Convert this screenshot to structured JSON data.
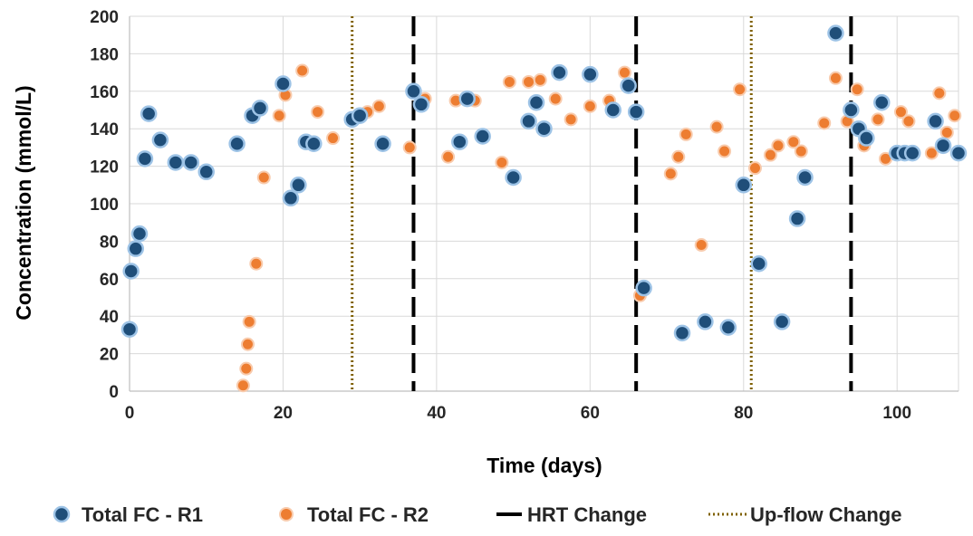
{
  "chart_data": {
    "type": "scatter",
    "xlabel": "Time (days)",
    "ylabel": "Concentration (mmol/L)",
    "xlim": [
      0,
      108
    ],
    "ylim": [
      0,
      200
    ],
    "x_ticks": [
      "0",
      "20",
      "40",
      "60",
      "80",
      "100"
    ],
    "y_ticks": [
      "0",
      "20",
      "40",
      "60",
      "80",
      "100",
      "120",
      "140",
      "160",
      "180",
      "200"
    ],
    "grid": true,
    "legend_position": "bottom",
    "colors": {
      "r1_fill": "#1f4e79",
      "r1_edge": "#9dc3e6",
      "r2_fill": "#ed7d31",
      "r2_edge": "#f8cbad",
      "hrt": "#000000",
      "upflow": "#7f6000",
      "grid": "#d9d9d9"
    },
    "series": [
      {
        "name": "Total FC - R1",
        "points": [
          [
            0,
            33
          ],
          [
            0.2,
            64
          ],
          [
            0.8,
            76
          ],
          [
            1.3,
            84
          ],
          [
            2,
            124
          ],
          [
            2.5,
            148
          ],
          [
            4,
            134
          ],
          [
            6,
            122
          ],
          [
            8,
            122
          ],
          [
            10,
            117
          ],
          [
            14,
            132
          ],
          [
            16,
            147
          ],
          [
            17,
            151
          ],
          [
            20,
            164
          ],
          [
            21,
            103
          ],
          [
            22,
            110
          ],
          [
            23,
            133
          ],
          [
            24,
            132
          ],
          [
            29,
            145
          ],
          [
            30,
            147
          ],
          [
            33,
            132
          ],
          [
            37,
            160
          ],
          [
            38,
            153
          ],
          [
            43,
            133
          ],
          [
            44,
            156
          ],
          [
            46,
            136
          ],
          [
            50,
            114
          ],
          [
            52,
            144
          ],
          [
            53,
            154
          ],
          [
            54,
            140
          ],
          [
            56,
            170
          ],
          [
            60,
            169
          ],
          [
            63,
            150
          ],
          [
            65,
            163
          ],
          [
            66,
            149
          ],
          [
            67,
            55
          ],
          [
            72,
            31
          ],
          [
            75,
            37
          ],
          [
            78,
            34
          ],
          [
            80,
            110
          ],
          [
            82,
            68
          ],
          [
            85,
            37
          ],
          [
            87,
            92
          ],
          [
            88,
            114
          ],
          [
            92,
            191
          ],
          [
            94,
            150
          ],
          [
            95,
            140
          ],
          [
            96,
            135
          ],
          [
            98,
            154
          ],
          [
            100,
            127
          ],
          [
            101,
            127
          ],
          [
            102,
            127
          ],
          [
            105,
            144
          ],
          [
            106,
            131
          ],
          [
            108,
            127
          ]
        ]
      },
      {
        "name": "Total FC - R2",
        "points": [
          [
            14.8,
            3
          ],
          [
            15.2,
            12
          ],
          [
            15.4,
            25
          ],
          [
            15.6,
            37
          ],
          [
            16.5,
            68
          ],
          [
            17.5,
            114
          ],
          [
            19.5,
            147
          ],
          [
            20.3,
            158
          ],
          [
            22.5,
            171
          ],
          [
            24.5,
            149
          ],
          [
            26.5,
            135
          ],
          [
            31,
            149
          ],
          [
            32.5,
            152
          ],
          [
            36.5,
            130
          ],
          [
            38.5,
            156
          ],
          [
            41.5,
            125
          ],
          [
            42.5,
            155
          ],
          [
            45,
            155
          ],
          [
            48.5,
            122
          ],
          [
            49.5,
            165
          ],
          [
            52,
            165
          ],
          [
            53.5,
            166
          ],
          [
            55.5,
            156
          ],
          [
            57.5,
            145
          ],
          [
            60,
            152
          ],
          [
            62.5,
            155
          ],
          [
            64.5,
            170
          ],
          [
            66.5,
            51
          ],
          [
            70.5,
            116
          ],
          [
            71.5,
            125
          ],
          [
            72.5,
            137
          ],
          [
            74.5,
            78
          ],
          [
            76.5,
            141
          ],
          [
            77.5,
            128
          ],
          [
            79.5,
            161
          ],
          [
            81.5,
            119
          ],
          [
            83.5,
            126
          ],
          [
            84.5,
            131
          ],
          [
            86.5,
            133
          ],
          [
            87.5,
            128
          ],
          [
            90.5,
            143
          ],
          [
            92,
            167
          ],
          [
            93.5,
            144
          ],
          [
            94.8,
            161
          ],
          [
            95.7,
            131
          ],
          [
            97.5,
            145
          ],
          [
            98.5,
            124
          ],
          [
            100.5,
            149
          ],
          [
            101.5,
            144
          ],
          [
            104.5,
            127
          ],
          [
            105.5,
            159
          ],
          [
            106.5,
            138
          ],
          [
            107.5,
            147
          ]
        ]
      }
    ],
    "vertical_lines": [
      {
        "name": "HRT Change",
        "style": "dashed",
        "x": [
          37,
          66,
          94
        ]
      },
      {
        "name": "Up-flow Change",
        "style": "dotted",
        "x": [
          29,
          81
        ]
      }
    ],
    "legend": [
      "Total FC - R1",
      "Total FC - R2",
      "HRT Change",
      "Up-flow Change"
    ]
  }
}
